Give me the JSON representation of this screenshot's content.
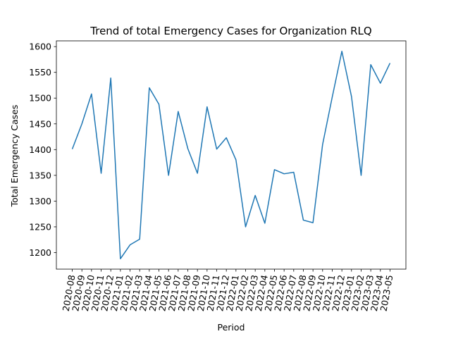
{
  "chart_data": {
    "type": "line",
    "title": "Trend of total Emergency Cases for Organization RLQ",
    "xlabel": "Period",
    "ylabel": "Total Emergency Cases",
    "categories": [
      "2020-08",
      "2020-09",
      "2020-10",
      "2020-11",
      "2020-12",
      "2021-01",
      "2021-02",
      "2021-03",
      "2021-04",
      "2021-05",
      "2021-06",
      "2021-07",
      "2021-08",
      "2021-09",
      "2021-10",
      "2021-11",
      "2021-12",
      "2022-01",
      "2022-02",
      "2022-03",
      "2022-04",
      "2022-05",
      "2022-06",
      "2022-07",
      "2022-08",
      "2022-09",
      "2022-10",
      "2022-11",
      "2022-12",
      "2023-01",
      "2023-02",
      "2023-03",
      "2023-04",
      "2023-05"
    ],
    "series": [
      {
        "values": [
          1401,
          1450,
          1508,
          1354,
          1539,
          1188,
          1215,
          1226,
          1520,
          1488,
          1350,
          1474,
          1402,
          1354,
          1483,
          1401,
          1423,
          1380,
          1250,
          1311,
          1257,
          1361,
          1353,
          1356,
          1263,
          1258,
          1410,
          1502,
          1591,
          1503,
          1350,
          1565,
          1529,
          1568
        ],
        "color": "#1f77b4"
      }
    ],
    "yticks": [
      1200,
      1250,
      1300,
      1350,
      1400,
      1450,
      1500,
      1550,
      1600
    ],
    "ylim": [
      1167.85,
      1611.15
    ],
    "grid": false,
    "xtick_rotation": 80
  }
}
